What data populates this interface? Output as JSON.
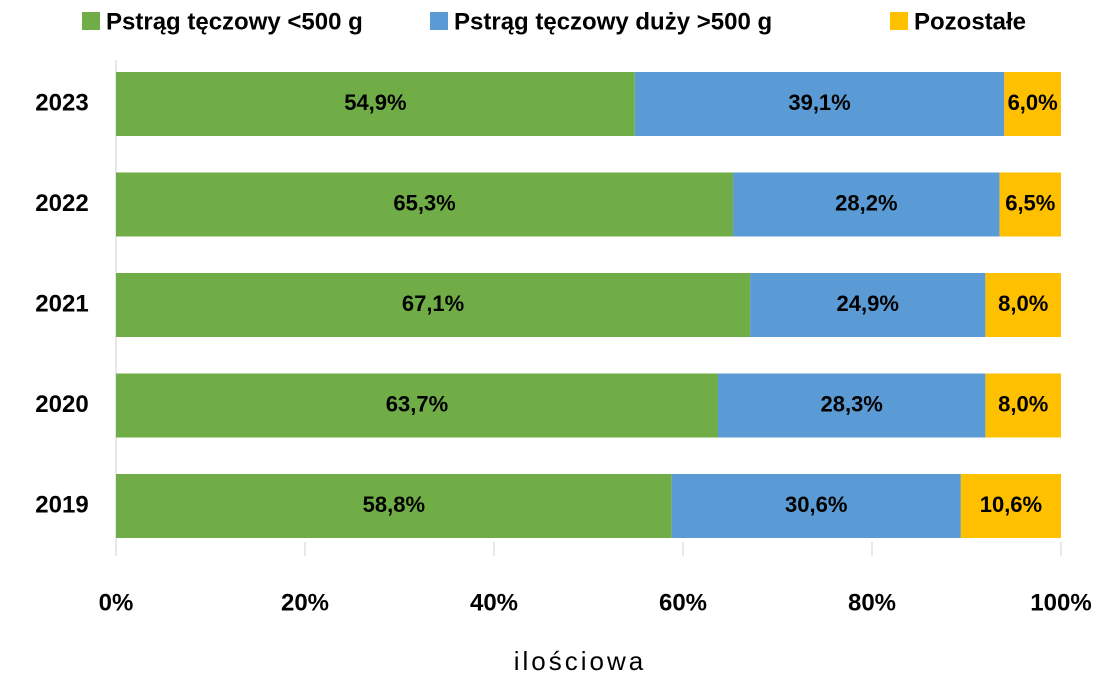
{
  "chart_data": {
    "type": "stacked-bar-horizontal",
    "categories": [
      "2023",
      "2022",
      "2021",
      "2020",
      "2019"
    ],
    "series": [
      {
        "name": "Pstrąg tęczowy <500 g",
        "color": "#70ad47",
        "values": [
          54.9,
          65.3,
          67.1,
          63.7,
          58.8
        ],
        "value_labels": [
          "54,9%",
          "65,3%",
          "67,1%",
          "63,7%",
          "58,8%"
        ]
      },
      {
        "name": "Pstrąg tęczowy duży >500 g",
        "color": "#5b9bd5",
        "values": [
          39.1,
          28.2,
          24.9,
          28.3,
          30.6
        ],
        "value_labels": [
          "39,1%",
          "28,2%",
          "24,9%",
          "28,3%",
          "30,6%"
        ]
      },
      {
        "name": "Pozostałe",
        "color": "#ffc000",
        "values": [
          6.0,
          6.5,
          8.0,
          8.0,
          10.6
        ],
        "value_labels": [
          "6,0%",
          "6,5%",
          "8,0%",
          "8,0%",
          "10,6%"
        ]
      }
    ],
    "xlim": [
      0,
      100
    ],
    "xticks": [
      {
        "value": 0,
        "label": "0%"
      },
      {
        "value": 20,
        "label": "20%"
      },
      {
        "value": 40,
        "label": "40%"
      },
      {
        "value": 60,
        "label": "60%"
      },
      {
        "value": 80,
        "label": "80%"
      },
      {
        "value": 100,
        "label": "100%"
      }
    ],
    "x_label": "ilościowa",
    "legend": "top"
  }
}
